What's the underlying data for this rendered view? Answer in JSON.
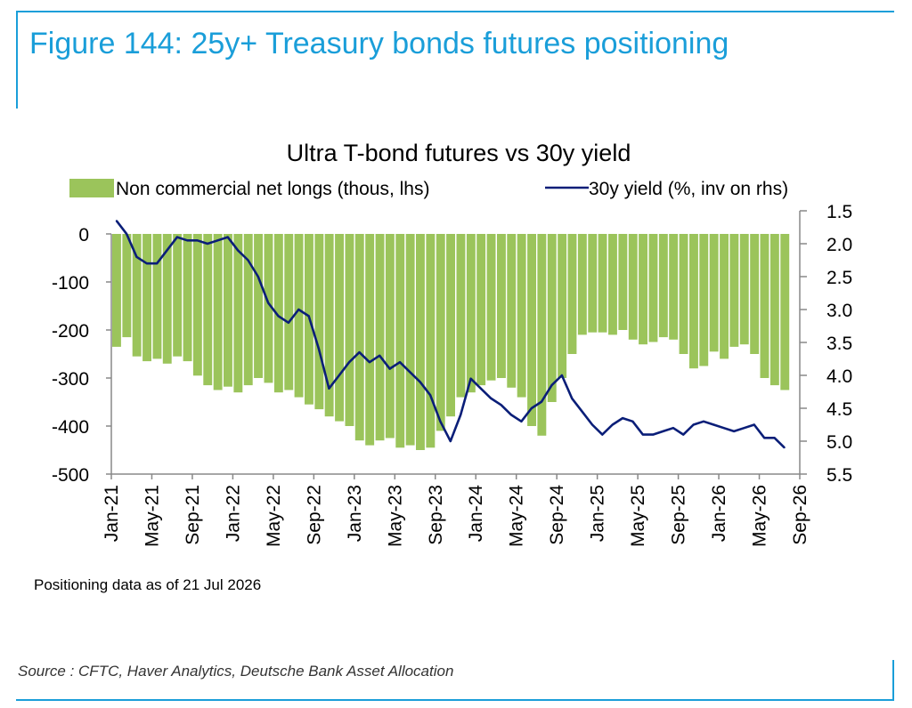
{
  "figure_title": "Figure 144: 25y+ Treasury bonds futures positioning",
  "footnote": "Positioning data as of 21 Jul 2026",
  "source": "Source : CFTC, Haver Analytics, Deutsche Bank Asset Allocation",
  "colors": {
    "accent": "#1a9ed9",
    "bars": "#9bc45b",
    "line": "#0a1e78",
    "axis": "#888888"
  },
  "chart_data": {
    "type": "bar",
    "title": "Ultra T-bond futures vs 30y yield",
    "x_tick_labels": [
      "Jan-21",
      "May-21",
      "Sep-21",
      "Jan-22",
      "May-22",
      "Sep-22",
      "Jan-23",
      "May-23",
      "Sep-23",
      "Jan-24",
      "May-24",
      "Sep-24",
      "Jan-25",
      "May-25",
      "Sep-25",
      "Jan-26",
      "May-26",
      "Sep-26"
    ],
    "x_range": [
      "2021-01",
      "2026-09"
    ],
    "left_axis": {
      "ticks": [
        "0",
        "-100",
        "-200",
        "-300",
        "-400",
        "-500"
      ],
      "ylim": [
        -500,
        0
      ]
    },
    "right_axis": {
      "ticks": [
        "1.5",
        "2.0",
        "2.5",
        "3.0",
        "3.5",
        "4.0",
        "4.5",
        "5.0",
        "5.5"
      ],
      "ylim": [
        1.5,
        5.5
      ],
      "inverted": true
    },
    "legend_position": "top",
    "series": [
      {
        "name": "Non commercial net longs (thous, lhs)",
        "type": "bar",
        "axis": "left",
        "x": [
          "2021-01",
          "2021-02",
          "2021-03",
          "2021-04",
          "2021-05",
          "2021-06",
          "2021-07",
          "2021-08",
          "2021-09",
          "2021-10",
          "2021-11",
          "2021-12",
          "2022-01",
          "2022-02",
          "2022-03",
          "2022-04",
          "2022-05",
          "2022-06",
          "2022-07",
          "2022-08",
          "2022-09",
          "2022-10",
          "2022-11",
          "2022-12",
          "2023-01",
          "2023-02",
          "2023-03",
          "2023-04",
          "2023-05",
          "2023-06",
          "2023-07",
          "2023-08",
          "2023-09",
          "2023-10",
          "2023-11",
          "2023-12",
          "2024-01",
          "2024-02",
          "2024-03",
          "2024-04",
          "2024-05",
          "2024-06",
          "2024-07",
          "2024-08",
          "2024-09",
          "2024-10",
          "2024-11",
          "2024-12",
          "2025-01",
          "2025-02",
          "2025-03",
          "2025-04",
          "2025-05",
          "2025-06",
          "2025-07",
          "2025-08",
          "2025-09",
          "2025-10",
          "2025-11",
          "2025-12",
          "2026-01",
          "2026-02",
          "2026-03",
          "2026-04",
          "2026-05",
          "2026-06",
          "2026-07"
        ],
        "values": [
          -235,
          -215,
          -255,
          -265,
          -260,
          -270,
          -255,
          -265,
          -295,
          -315,
          -325,
          -318,
          -330,
          -315,
          -300,
          -310,
          -330,
          -325,
          -340,
          -355,
          -365,
          -380,
          -390,
          -400,
          -430,
          -440,
          -430,
          -425,
          -445,
          -440,
          -450,
          -445,
          -410,
          -380,
          -340,
          -330,
          -315,
          -305,
          -300,
          -320,
          -340,
          -400,
          -420,
          -350,
          -300,
          -250,
          -210,
          -205,
          -205,
          -210,
          -200,
          -220,
          -230,
          -225,
          -215,
          -220,
          -250,
          -280,
          -275,
          -245,
          -260,
          -235,
          -230,
          -250,
          -300,
          -315,
          -325
        ]
      },
      {
        "name": "30y yield (%, inv on rhs)",
        "type": "line",
        "axis": "right",
        "x": [
          "2021-01",
          "2021-02",
          "2021-03",
          "2021-04",
          "2021-05",
          "2021-06",
          "2021-07",
          "2021-08",
          "2021-09",
          "2021-10",
          "2021-11",
          "2021-12",
          "2022-01",
          "2022-02",
          "2022-03",
          "2022-04",
          "2022-05",
          "2022-06",
          "2022-07",
          "2022-08",
          "2022-09",
          "2022-10",
          "2022-11",
          "2022-12",
          "2023-01",
          "2023-02",
          "2023-03",
          "2023-04",
          "2023-05",
          "2023-06",
          "2023-07",
          "2023-08",
          "2023-09",
          "2023-10",
          "2023-11",
          "2023-12",
          "2024-01",
          "2024-02",
          "2024-03",
          "2024-04",
          "2024-05",
          "2024-06",
          "2024-07",
          "2024-08",
          "2024-09",
          "2024-10",
          "2024-11",
          "2024-12",
          "2025-01",
          "2025-02",
          "2025-03",
          "2025-04",
          "2025-05",
          "2025-06",
          "2025-07",
          "2025-08",
          "2025-09",
          "2025-10",
          "2025-11",
          "2025-12",
          "2026-01",
          "2026-02",
          "2026-03",
          "2026-04",
          "2026-05",
          "2026-06",
          "2026-07"
        ],
        "values": [
          1.65,
          1.85,
          2.2,
          2.3,
          2.3,
          2.1,
          1.9,
          1.95,
          1.95,
          2.0,
          1.95,
          1.9,
          2.1,
          2.25,
          2.5,
          2.9,
          3.1,
          3.2,
          3.0,
          3.1,
          3.6,
          4.2,
          4.0,
          3.8,
          3.65,
          3.8,
          3.7,
          3.9,
          3.8,
          3.95,
          4.1,
          4.3,
          4.7,
          5.0,
          4.6,
          4.05,
          4.2,
          4.35,
          4.45,
          4.6,
          4.7,
          4.5,
          4.4,
          4.15,
          4.0,
          4.35,
          4.55,
          4.75,
          4.9,
          4.75,
          4.65,
          4.7,
          4.9,
          4.9,
          4.85,
          4.8,
          4.9,
          4.75,
          4.7,
          4.75,
          4.8,
          4.85,
          4.8,
          4.75,
          4.95,
          4.95,
          5.1
        ]
      }
    ]
  }
}
